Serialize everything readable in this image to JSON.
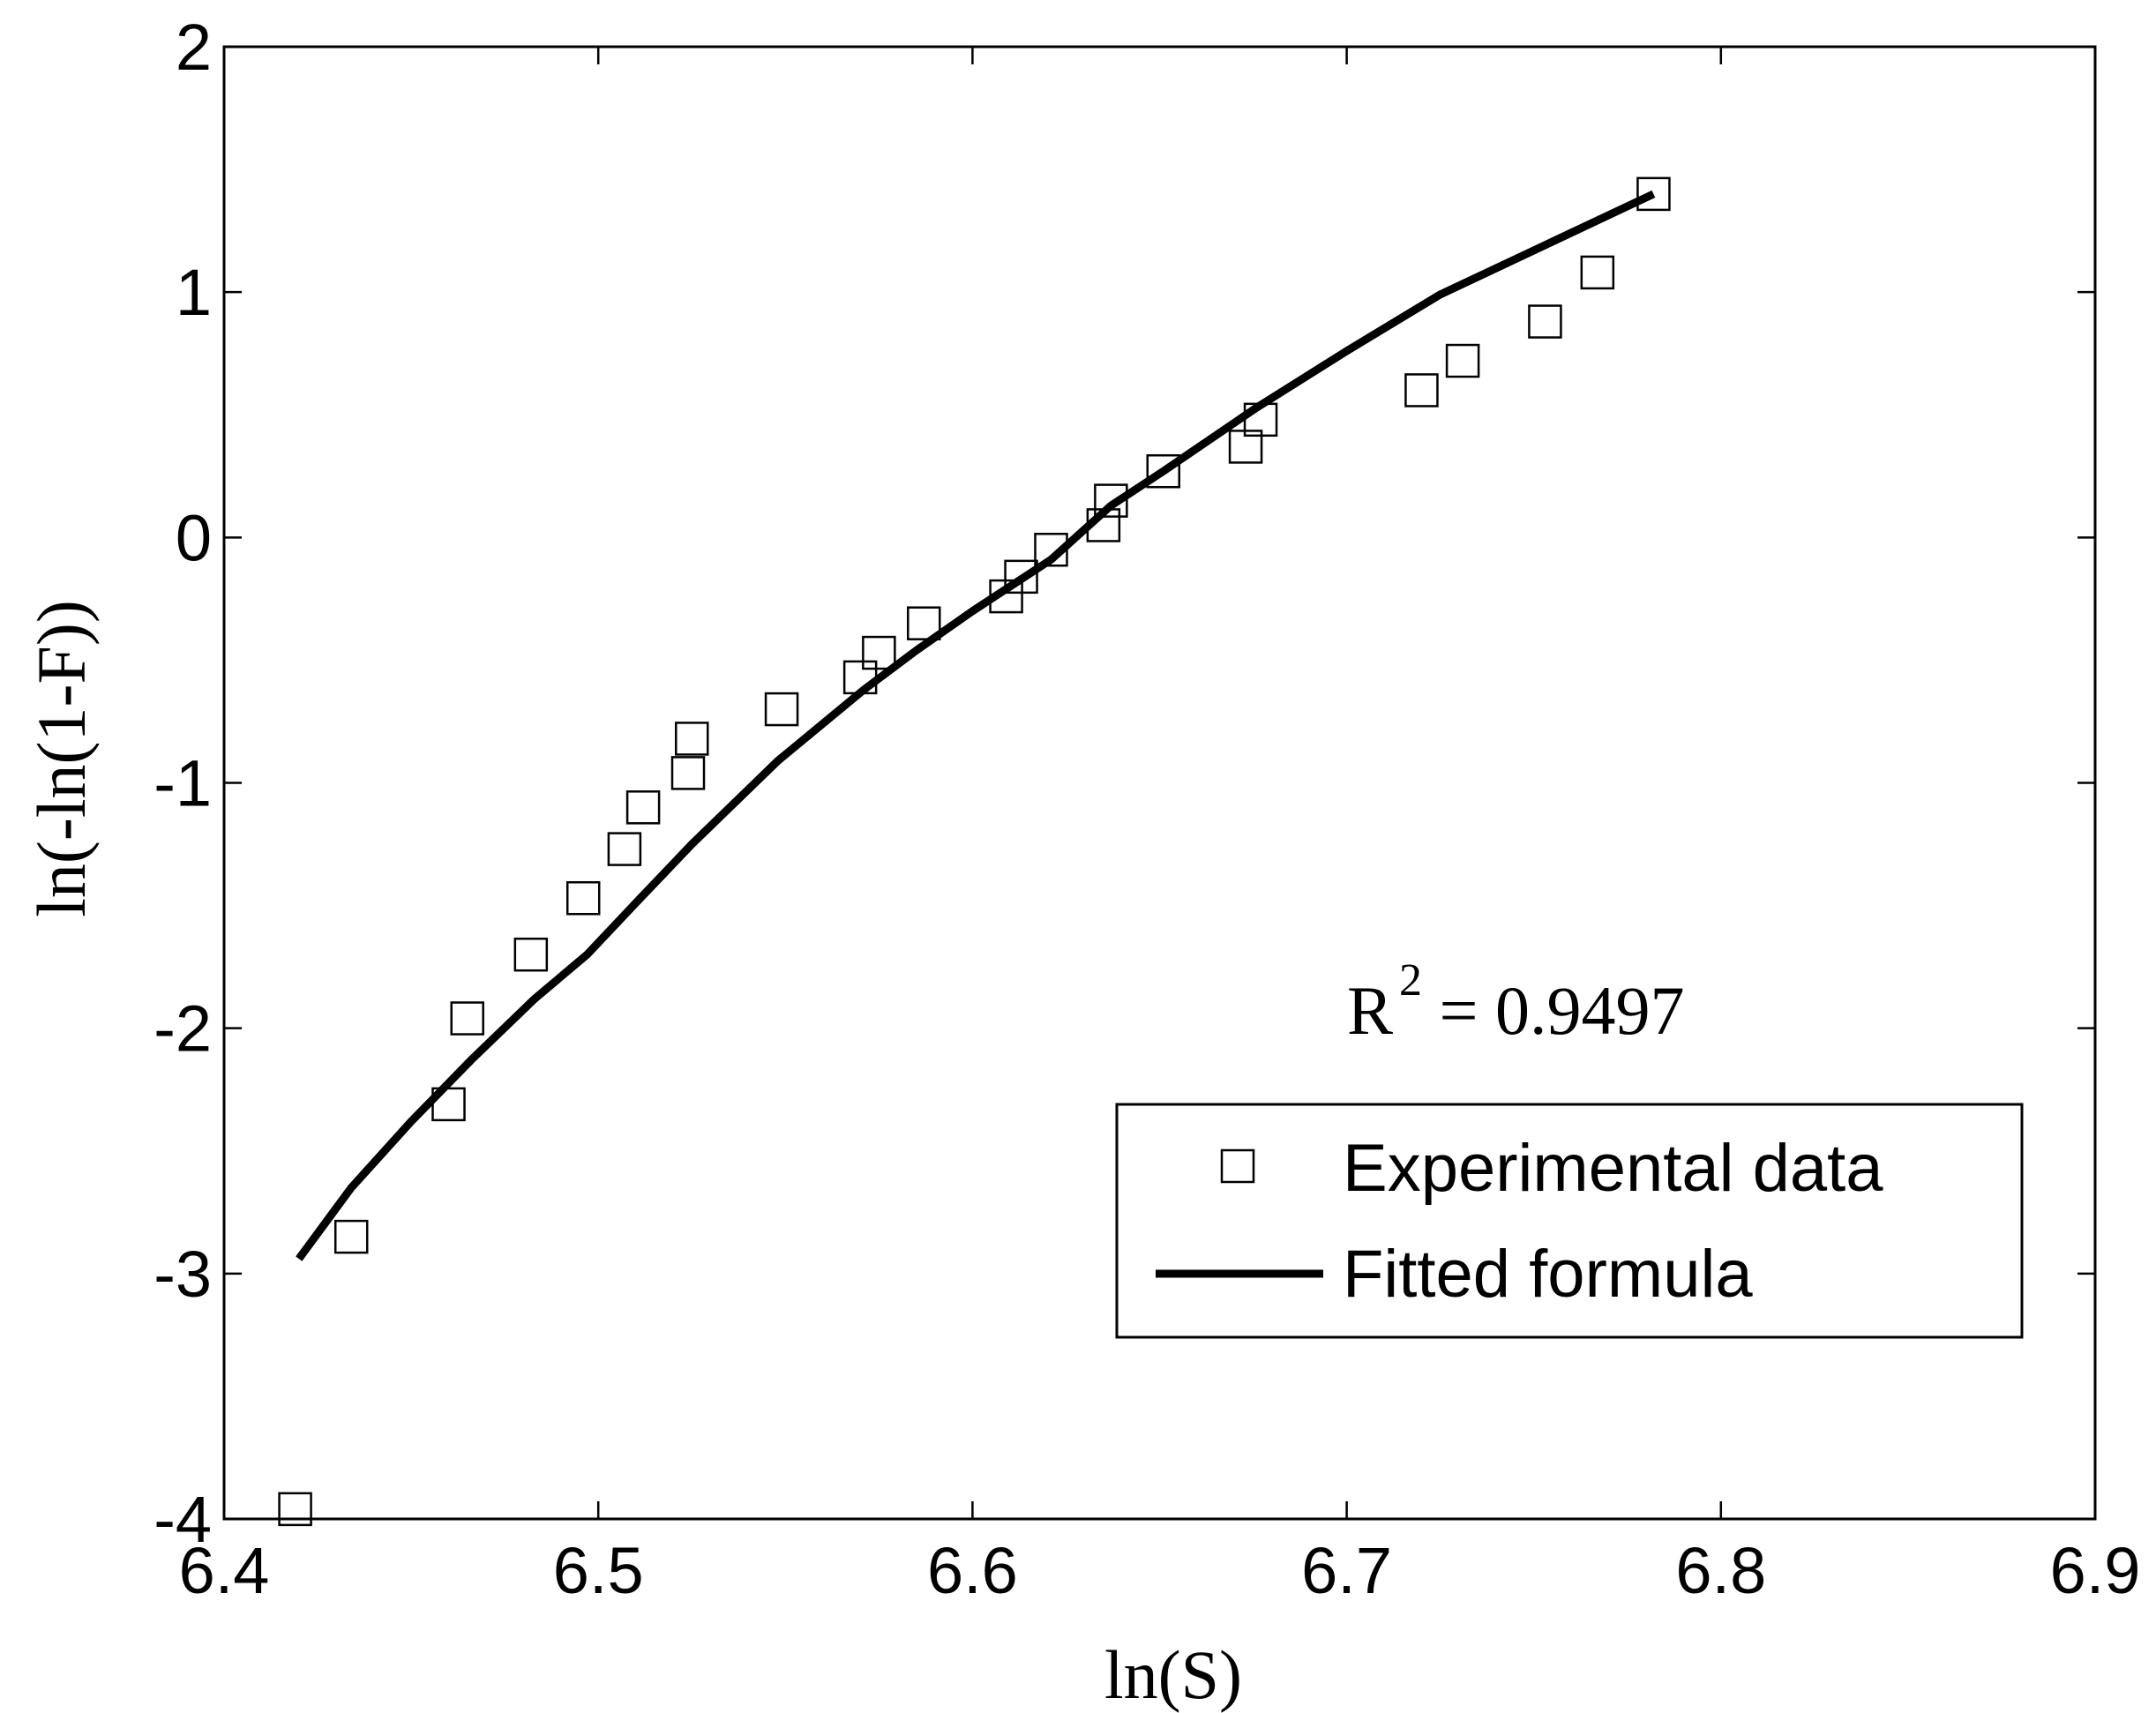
{
  "chart_data": {
    "type": "scatter",
    "xlabel": "ln(S)",
    "ylabel": "ln(-ln(1-F))",
    "xlim": [
      6.4,
      6.9
    ],
    "ylim": [
      -4,
      2
    ],
    "xticks": [
      "6.4",
      "6.5",
      "6.6",
      "6.7",
      "6.8",
      "6.9"
    ],
    "yticks": [
      "2",
      "1",
      "0",
      "-1",
      "-2",
      "-3",
      "-4"
    ],
    "grid": false,
    "legend_position": "lower-right",
    "annotation": {
      "base": "R",
      "superscript": "2",
      "rest": " = 0.9497"
    },
    "series": [
      {
        "name": "Experimental data",
        "kind": "markers",
        "marker": "open-square",
        "color": "#000000",
        "x": [
          6.419,
          6.434,
          6.46,
          6.465,
          6.482,
          6.496,
          6.507,
          6.512,
          6.524,
          6.525,
          6.549,
          6.57,
          6.575,
          6.587,
          6.609,
          6.613,
          6.621,
          6.635,
          6.637,
          6.651,
          6.673,
          6.677,
          6.72,
          6.731,
          6.753,
          6.767,
          6.782
        ],
        "y": [
          -3.96,
          -2.85,
          -2.31,
          -1.96,
          -1.7,
          -1.47,
          -1.27,
          -1.1,
          -0.96,
          -0.82,
          -0.7,
          -0.57,
          -0.47,
          -0.35,
          -0.24,
          -0.16,
          -0.05,
          0.05,
          0.15,
          0.27,
          0.37,
          0.48,
          0.6,
          0.72,
          0.88,
          1.08,
          1.4
        ]
      },
      {
        "name": "Fitted formula",
        "kind": "line",
        "color": "#000000",
        "x": [
          6.42,
          6.434,
          6.45,
          6.466,
          6.483,
          6.497,
          6.51,
          6.525,
          6.548,
          6.571,
          6.585,
          6.6,
          6.621,
          6.637,
          6.651,
          6.676,
          6.7,
          6.725,
          6.75,
          6.782
        ],
        "y": [
          -2.94,
          -2.65,
          -2.38,
          -2.13,
          -1.88,
          -1.7,
          -1.49,
          -1.25,
          -0.91,
          -0.62,
          -0.46,
          -0.3,
          -0.09,
          0.13,
          0.27,
          0.53,
          0.76,
          0.99,
          1.17,
          1.4
        ]
      }
    ]
  }
}
